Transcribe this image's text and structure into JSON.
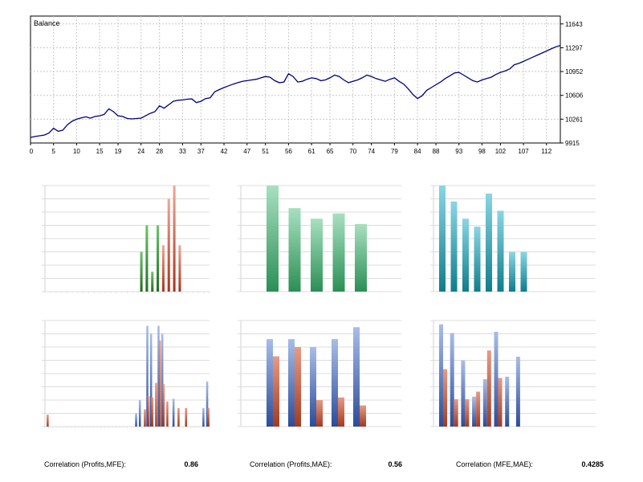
{
  "balance_chart": {
    "legend": "Balance"
  },
  "correlations": [
    {
      "label": "Correlation (Profits,MFE):",
      "value": "0.86"
    },
    {
      "label": "Correlation (Profits,MAE):",
      "value": "0.56"
    },
    {
      "label": "Correlation (MFE,MAE):",
      "value": "0.4285"
    }
  ],
  "colors": {
    "balance_line": "#000080",
    "grid": "#c8c8c8",
    "green": "#2e7d32",
    "red": "#b23a24",
    "teal": "#1f8a9a",
    "blue": "#3f5fa8"
  },
  "chart_data": [
    {
      "type": "line",
      "legend": "Balance",
      "x_ticks": [
        "0",
        "5",
        "10",
        "15",
        "19",
        "24",
        "28",
        "33",
        "37",
        "42",
        "47",
        "51",
        "56",
        "61",
        "65",
        "70",
        "74",
        "79",
        "84",
        "88",
        "93",
        "98",
        "102",
        "107",
        "112"
      ],
      "y_ticks": [
        "9915",
        "10261",
        "10606",
        "10952",
        "11297",
        "11643"
      ],
      "ylim": [
        9915,
        11757
      ],
      "xlim": [
        0,
        115
      ],
      "grid": true,
      "x": [
        0,
        1,
        2,
        3,
        4,
        5,
        6,
        7,
        8,
        9,
        10,
        11,
        12,
        13,
        14,
        15,
        16,
        17,
        18,
        19,
        20,
        21,
        22,
        23,
        24,
        25,
        26,
        27,
        28,
        29,
        30,
        31,
        32,
        33,
        34,
        35,
        36,
        37,
        38,
        39,
        40,
        41,
        42,
        43,
        44,
        45,
        46,
        47,
        48,
        49,
        50,
        51,
        52,
        53,
        54,
        55,
        56,
        57,
        58,
        59,
        60,
        61,
        62,
        63,
        64,
        65,
        66,
        67,
        68,
        69,
        70,
        71,
        72,
        73,
        74,
        75,
        76,
        77,
        78,
        79,
        80,
        81,
        82,
        83,
        84,
        85,
        86,
        87,
        88,
        89,
        90,
        91,
        92,
        93,
        94,
        95,
        96,
        97,
        98,
        99,
        100,
        101,
        102,
        103,
        104,
        105,
        106,
        107,
        108,
        109,
        110,
        111,
        112,
        113,
        114,
        115
      ],
      "y": [
        9995,
        10010,
        10020,
        10030,
        10060,
        10130,
        10085,
        10100,
        10180,
        10230,
        10260,
        10280,
        10295,
        10275,
        10300,
        10310,
        10330,
        10410,
        10370,
        10310,
        10300,
        10270,
        10265,
        10270,
        10275,
        10310,
        10345,
        10370,
        10455,
        10420,
        10470,
        10520,
        10535,
        10540,
        10550,
        10555,
        10500,
        10520,
        10560,
        10570,
        10660,
        10690,
        10720,
        10745,
        10770,
        10790,
        10810,
        10820,
        10830,
        10840,
        10860,
        10880,
        10870,
        10820,
        10790,
        10800,
        10920,
        10880,
        10800,
        10810,
        10840,
        10860,
        10850,
        10820,
        10830,
        10860,
        10900,
        10880,
        10830,
        10790,
        10810,
        10830,
        10860,
        10900,
        10880,
        10850,
        10830,
        10810,
        10840,
        10860,
        10810,
        10770,
        10700,
        10620,
        10560,
        10600,
        10680,
        10720,
        10760,
        10800,
        10850,
        10890,
        10930,
        10940,
        10900,
        10860,
        10820,
        10800,
        10830,
        10850,
        10870,
        10910,
        10940,
        10960,
        10990,
        11050,
        11070,
        11100,
        11130,
        11160,
        11190,
        11220,
        11250,
        11280,
        11310,
        11330
      ]
    },
    {
      "type": "bar",
      "series": [
        {
          "values": [
            0,
            0,
            0,
            0,
            0,
            0,
            0,
            0,
            0,
            0,
            0,
            0,
            0,
            0,
            0,
            0,
            0,
            3,
            5,
            1.5,
            5,
            0,
            0,
            0,
            0,
            0,
            0,
            0,
            0,
            0
          ]
        },
        {
          "values": [
            0,
            0,
            0,
            0,
            0,
            0,
            0,
            0,
            0,
            0,
            0,
            0,
            0,
            0,
            0,
            0,
            0,
            0,
            0,
            0,
            0,
            3.5,
            7,
            8,
            3.5,
            0,
            0,
            0,
            0,
            0
          ]
        }
      ]
    },
    {
      "type": "bar",
      "values": [
        8,
        6.3,
        5.5,
        5.9,
        5.1
      ]
    },
    {
      "type": "bar",
      "values": [
        8,
        6.8,
        5.5,
        4.9,
        7.4,
        6.1,
        3,
        3
      ]
    },
    {
      "type": "bar",
      "series": [
        {
          "values": [
            0,
            0,
            0,
            0,
            0,
            0,
            0,
            0,
            0,
            0,
            0,
            0,
            0,
            0,
            0,
            0,
            0,
            0,
            0,
            0,
            0,
            0,
            0,
            0,
            1,
            2,
            0,
            7.6,
            7,
            0,
            7.6,
            7,
            0,
            0,
            2.1,
            0,
            0,
            0,
            0,
            0,
            0,
            0,
            1.4,
            3.4
          ]
        },
        {
          "values": [
            0.9,
            0,
            0,
            0,
            0,
            0,
            0,
            0,
            0,
            0,
            0,
            0,
            0,
            0,
            0,
            0,
            0,
            0,
            0,
            0,
            0,
            0,
            0,
            0,
            0,
            0,
            1.3,
            2.3,
            2.2,
            3.3,
            6.5,
            3.2,
            1.9,
            0,
            0,
            1.4,
            0,
            1.4,
            0,
            0,
            0,
            0,
            0,
            1.4
          ]
        }
      ]
    },
    {
      "type": "bar",
      "series": [
        {
          "values": [
            6.6,
            6.6,
            6.0,
            6.6,
            7.5
          ]
        },
        {
          "values": [
            5.3,
            6.0,
            2.0,
            2.2,
            1.6
          ]
        }
      ]
    },
    {
      "type": "bar",
      "series": [
        {
          "values": [
            8.2,
            7.5,
            5.3,
            2.4,
            3.8,
            7.6,
            4.0,
            5.6
          ]
        },
        {
          "values": [
            4.6,
            2.2,
            2.2,
            2.8,
            6.1,
            3.9,
            0,
            0
          ]
        }
      ]
    }
  ]
}
